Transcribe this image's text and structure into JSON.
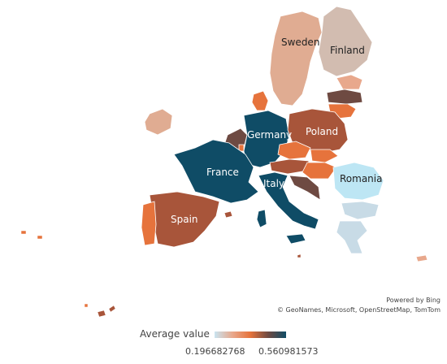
{
  "map": {
    "labels": {
      "sweden": "Sweden",
      "finland": "Finland",
      "germany": "Germany",
      "poland": "Poland",
      "france": "France",
      "italy": "Italy",
      "romania": "Romania",
      "spain": "Spain"
    },
    "colors": {
      "high": "#0f4c66",
      "upper_mid": "#a8553a",
      "mid": "#e6733c",
      "light_orange": "#e8a88c",
      "beige": "#d2b8a8",
      "grey_blue": "#c8dbe6",
      "light_blue": "#bde6f4",
      "dark_brown": "#6e4a42"
    }
  },
  "attribution": {
    "powered_by": "Powered by Bing",
    "credits": "© GeoNames, Microsoft, OpenStreetMap, TomTom"
  },
  "legend": {
    "title": "Average value",
    "min_label": "0.196682768",
    "max_label": "0.560981573",
    "gradient": [
      "#c9e4f0",
      "#e8a88c",
      "#e6733c",
      "#6e4a42",
      "#0f4c66"
    ]
  }
}
